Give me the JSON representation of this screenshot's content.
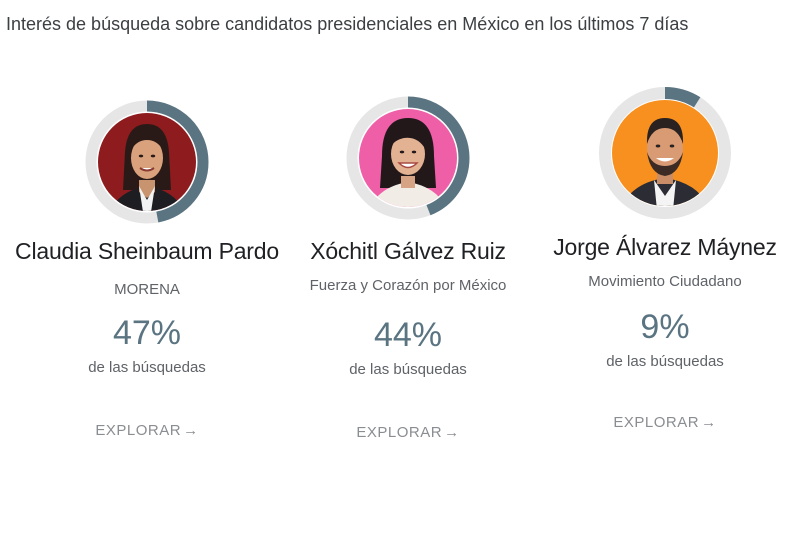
{
  "title": "Interés de búsqueda sobre candidatos presidenciales en México en los últimos 7 días",
  "accent_color": "#5a7482",
  "ring_track_color": "#e6e6e6",
  "candidates": [
    {
      "name": "Claudia Sheinbaum Pardo",
      "party": "MORENA",
      "percent": "47%",
      "share": 0.47,
      "label": "de las búsquedas",
      "explore": "EXPLORAR",
      "arrow": "→",
      "avatar_bg": "#8e1b1e"
    },
    {
      "name": "Xóchitl Gálvez Ruiz",
      "party": "Fuerza y Corazón por México",
      "percent": "44%",
      "share": 0.44,
      "label": "de las búsquedas",
      "explore": "EXPLORAR",
      "arrow": "→",
      "avatar_bg": "#ee5fa8"
    },
    {
      "name": "Jorge Álvarez Máynez",
      "party": "Movimiento Ciudadano",
      "percent": "9%",
      "share": 0.09,
      "label": "de las búsquedas",
      "explore": "EXPLORAR",
      "arrow": "→",
      "avatar_bg": "#f7901e"
    }
  ]
}
